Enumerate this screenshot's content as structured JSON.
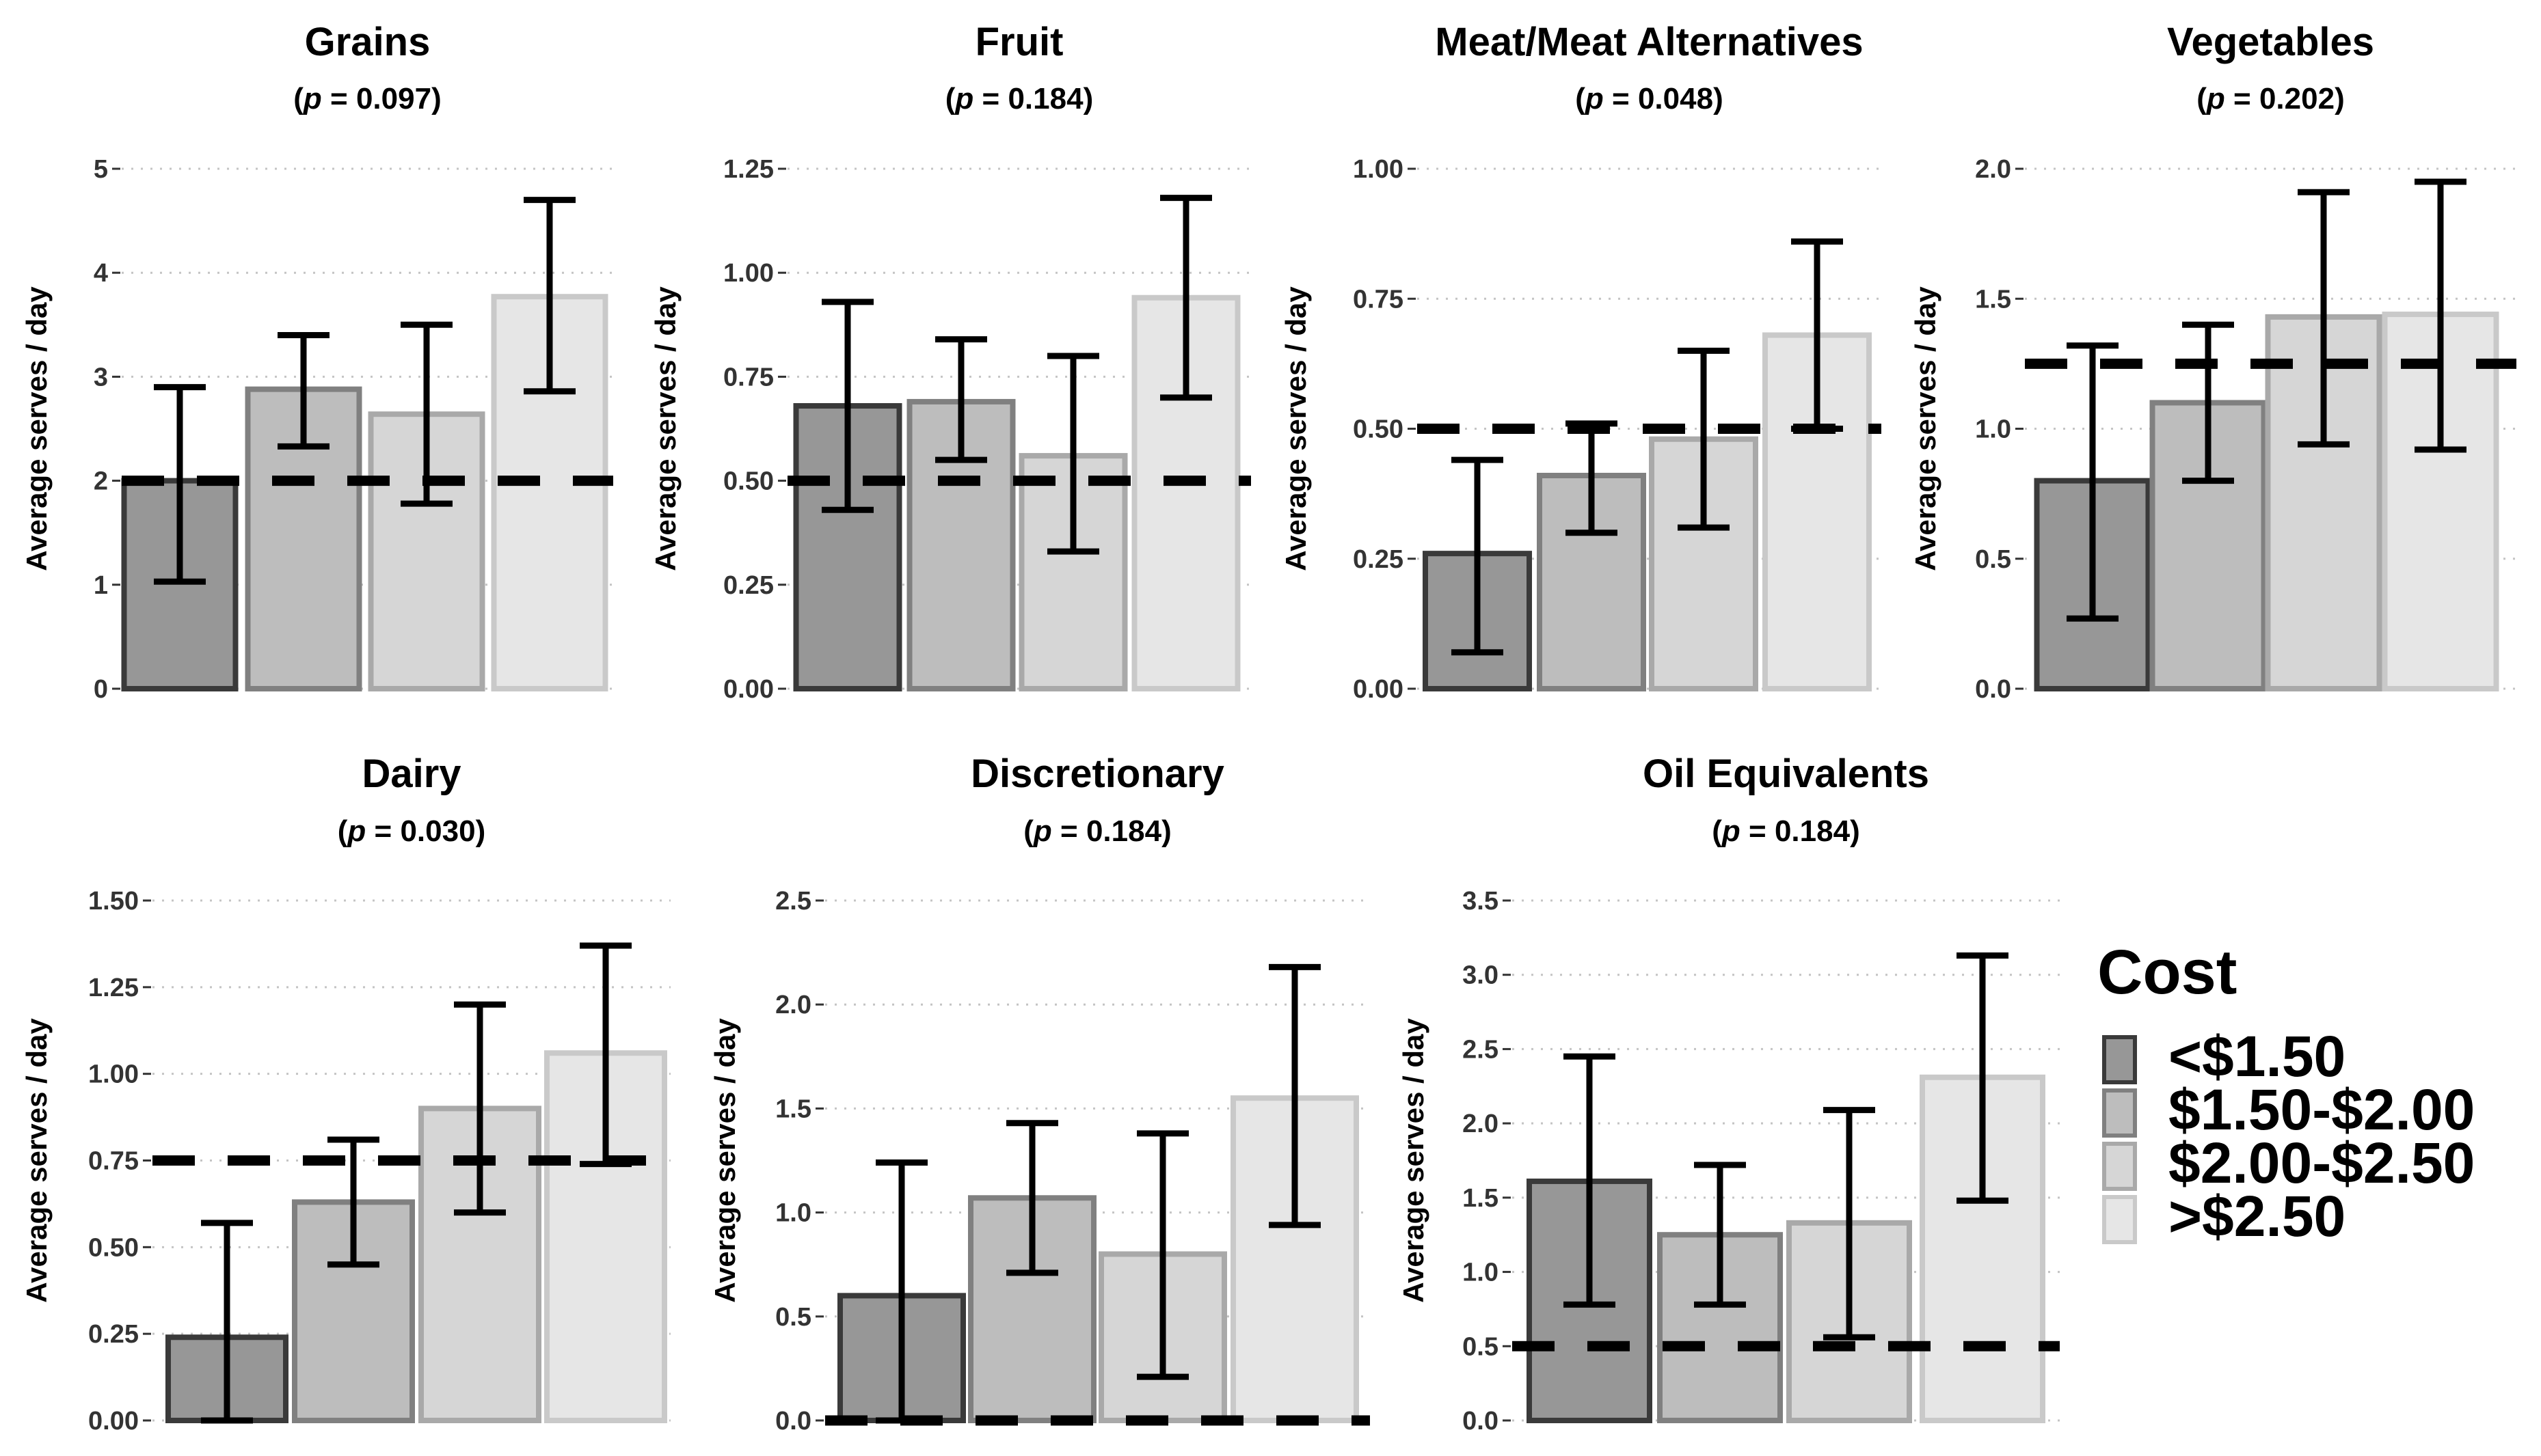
{
  "chart_data": {
    "type": "bar",
    "ylabel": "Average serves / day",
    "categories": [
      "<$1.50",
      "$1.50-$2.00",
      "$2.00-$2.50",
      ">$2.50"
    ],
    "colors": {
      "fill": [
        "#979797",
        "#bdbdbd",
        "#d6d6d6",
        "#e6e6e6"
      ],
      "stroke": [
        "#3a3a3a",
        "#808080",
        "#a9a9a9",
        "#c9c9c9"
      ]
    },
    "legend": {
      "title": "Cost",
      "position": "right",
      "items": [
        "<$1.50",
        "$1.50-$2.00",
        "$2.00-$2.50",
        ">$2.50"
      ]
    },
    "panels": [
      {
        "title": "Grains",
        "p": "0.097",
        "ylim": [
          0,
          5
        ],
        "ticks": [
          "0",
          "1",
          "2",
          "3",
          "4",
          "5"
        ],
        "tick_values": [
          0,
          1,
          2,
          3,
          4,
          5
        ],
        "values": [
          2.0,
          2.88,
          2.64,
          3.77
        ],
        "err_low": [
          1.03,
          2.33,
          1.78,
          2.86
        ],
        "err_high": [
          2.9,
          3.4,
          3.5,
          4.7
        ],
        "reference": 2.0
      },
      {
        "title": "Fruit",
        "p": "0.184",
        "ylim": [
          0,
          1.25
        ],
        "ticks": [
          "0.00",
          "0.25",
          "0.50",
          "0.75",
          "1.00",
          "1.25"
        ],
        "tick_values": [
          0,
          0.25,
          0.5,
          0.75,
          1.0,
          1.25
        ],
        "values": [
          0.68,
          0.69,
          0.56,
          0.94
        ],
        "err_low": [
          0.43,
          0.55,
          0.33,
          0.7
        ],
        "err_high": [
          0.93,
          0.84,
          0.8,
          1.18
        ],
        "reference": 0.5
      },
      {
        "title": "Meat/Meat Alternatives",
        "p": "0.048",
        "ylim": [
          0,
          1.0
        ],
        "ticks": [
          "0.00",
          "0.25",
          "0.50",
          "0.75",
          "1.00"
        ],
        "tick_values": [
          0,
          0.25,
          0.5,
          0.75,
          1.0
        ],
        "values": [
          0.26,
          0.41,
          0.48,
          0.68
        ],
        "err_low": [
          0.07,
          0.3,
          0.31,
          0.5
        ],
        "err_high": [
          0.44,
          0.51,
          0.65,
          0.86
        ],
        "reference": 0.5
      },
      {
        "title": "Vegetables",
        "p": "0.202",
        "ylim": [
          0,
          2.0
        ],
        "ticks": [
          "0.0",
          "0.5",
          "1.0",
          "1.5",
          "2.0"
        ],
        "tick_values": [
          0,
          0.5,
          1.0,
          1.5,
          2.0
        ],
        "values": [
          0.8,
          1.1,
          1.43,
          1.44
        ],
        "err_low": [
          0.27,
          0.8,
          0.94,
          0.92
        ],
        "err_high": [
          1.32,
          1.4,
          1.91,
          1.95
        ],
        "reference": 1.25
      },
      {
        "title": "Dairy",
        "p": "0.030",
        "ylim": [
          0,
          1.5
        ],
        "ticks": [
          "0.00",
          "0.25",
          "0.50",
          "0.75",
          "1.00",
          "1.25",
          "1.50"
        ],
        "tick_values": [
          0,
          0.25,
          0.5,
          0.75,
          1.0,
          1.25,
          1.5
        ],
        "values": [
          0.24,
          0.63,
          0.9,
          1.06
        ],
        "err_low": [
          0.0,
          0.45,
          0.6,
          0.74
        ],
        "err_high": [
          0.57,
          0.81,
          1.2,
          1.37
        ],
        "reference": 0.75
      },
      {
        "title": "Discretionary",
        "p": "0.184",
        "ylim": [
          0,
          2.5
        ],
        "ticks": [
          "0.0",
          "0.5",
          "1.0",
          "1.5",
          "2.0",
          "2.5"
        ],
        "tick_values": [
          0,
          0.5,
          1.0,
          1.5,
          2.0,
          2.5
        ],
        "values": [
          0.6,
          1.07,
          0.8,
          1.55
        ],
        "err_low": [
          0.0,
          0.71,
          0.21,
          0.94
        ],
        "err_high": [
          1.24,
          1.43,
          1.38,
          2.18
        ],
        "reference": 0.0
      },
      {
        "title": "Oil Equivalents",
        "p": "0.184",
        "ylim": [
          0,
          3.5
        ],
        "ticks": [
          "0.0",
          "0.5",
          "1.0",
          "1.5",
          "2.0",
          "2.5",
          "3.0",
          "3.5"
        ],
        "tick_values": [
          0,
          0.5,
          1.0,
          1.5,
          2.0,
          2.5,
          3.0,
          3.5
        ],
        "values": [
          1.61,
          1.25,
          1.33,
          2.31
        ],
        "err_low": [
          0.78,
          0.78,
          0.56,
          1.48
        ],
        "err_high": [
          2.45,
          1.72,
          2.09,
          3.13
        ],
        "reference": 0.5
      }
    ]
  }
}
